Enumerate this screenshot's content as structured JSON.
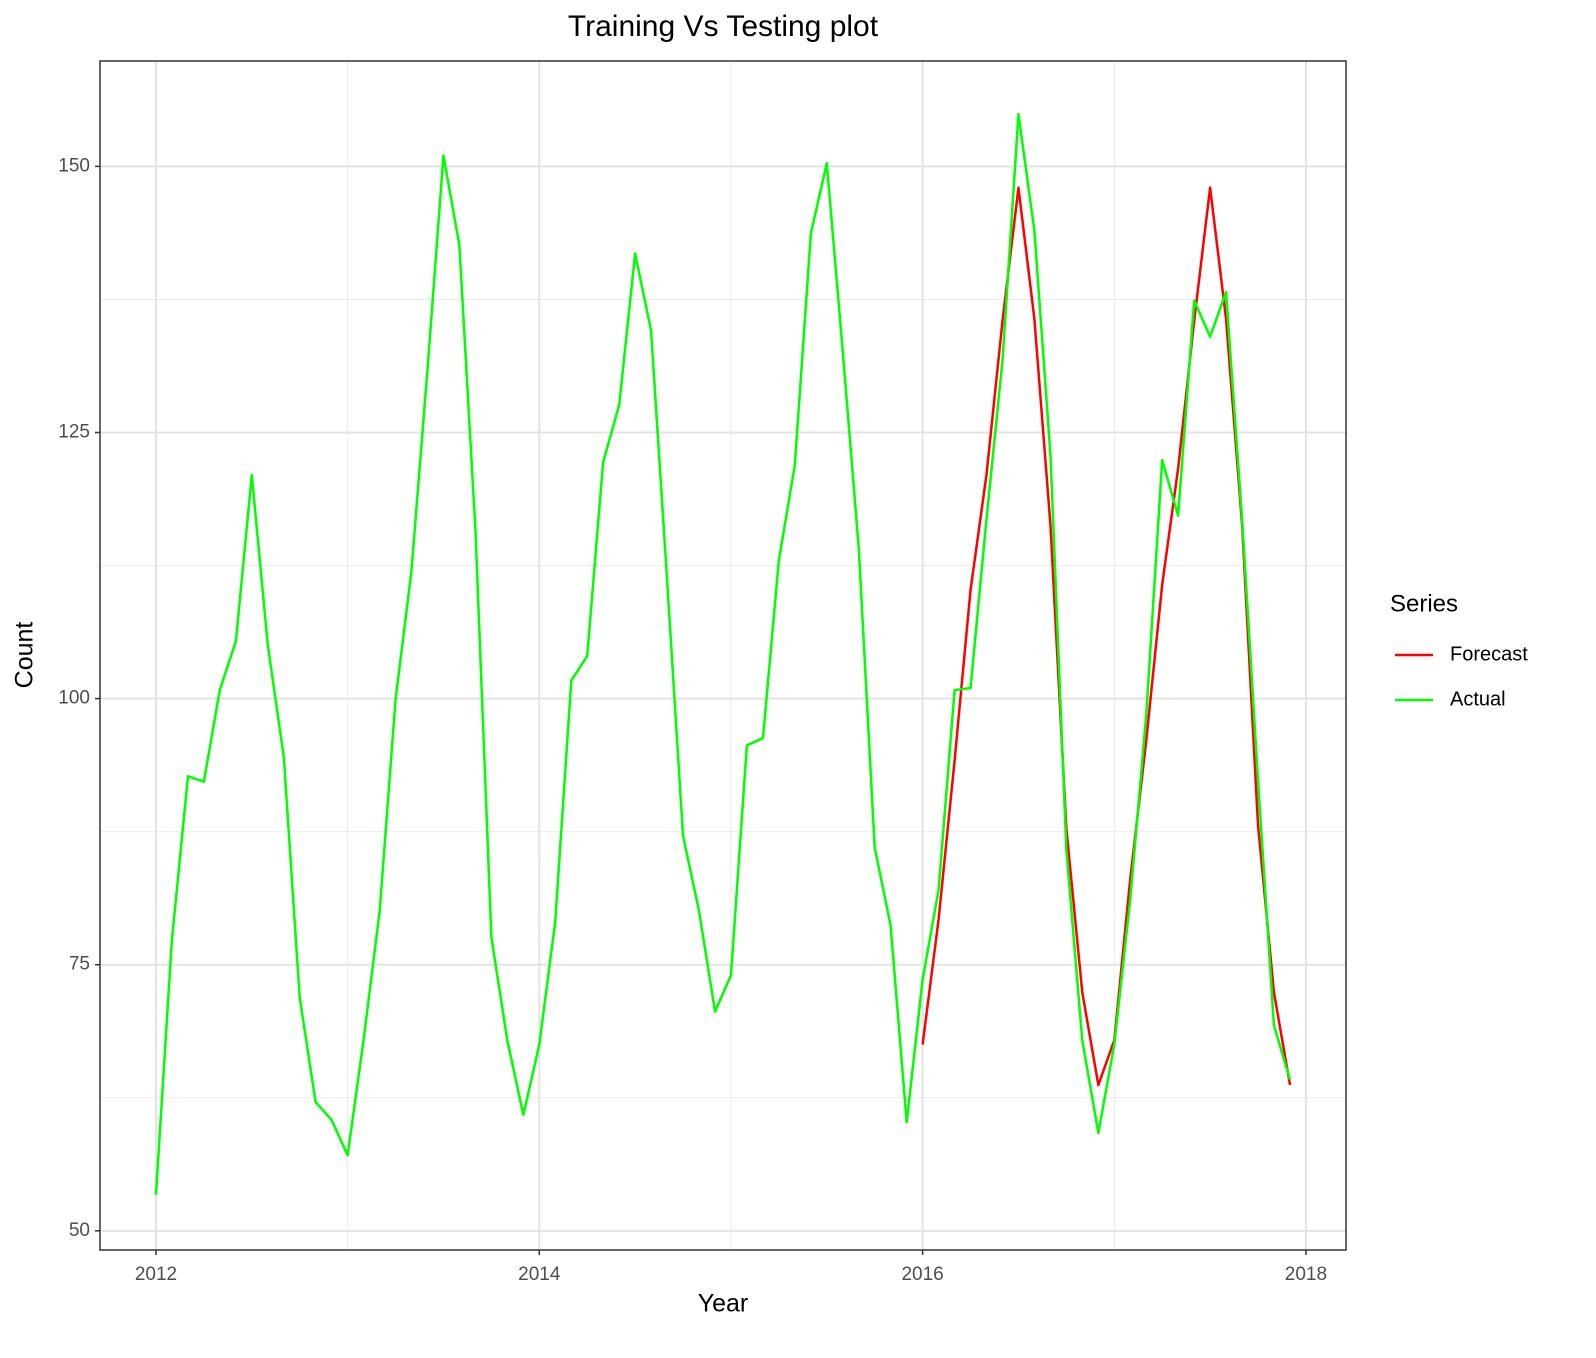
{
  "chart_data": {
    "type": "line",
    "title": "Training Vs Testing plot",
    "x_label": "Year",
    "y_label": "Count",
    "xlim": [
      2011.708,
      2018.209
    ],
    "ylim": [
      48.2,
      159.9
    ],
    "xticks": [
      2012,
      2014,
      2016,
      2018
    ],
    "yticks": [
      50,
      75,
      100,
      125,
      150
    ],
    "grid": true,
    "minor_grid": true,
    "legend_title": "Series",
    "legend_position": "right",
    "series": [
      {
        "name": "Forecast",
        "color": "#ff0000",
        "x": [
          2016,
          2016.083,
          2016.167,
          2016.25,
          2016.333,
          2016.417,
          2016.5,
          2016.583,
          2016.667,
          2016.75,
          2016.833,
          2016.917,
          2017,
          2017.083,
          2017.167,
          2017.25,
          2017.333,
          2017.417,
          2017.5,
          2017.583,
          2017.667,
          2017.75,
          2017.833,
          2017.917
        ],
        "values": [
          67.5,
          79.2,
          94.2,
          110.2,
          121.0,
          135.5,
          148.0,
          135.7,
          116.3,
          87.8,
          72.4,
          63.7,
          67.9,
          83.0,
          96.1,
          110.7,
          121.6,
          135.5,
          148.0,
          135.7,
          116.3,
          88.1,
          72.4,
          63.7
        ]
      },
      {
        "name": "Actual",
        "color": "#00ff00",
        "x": [
          2012,
          2012.083,
          2012.167,
          2012.25,
          2012.333,
          2012.417,
          2012.5,
          2012.583,
          2012.667,
          2012.75,
          2012.833,
          2012.917,
          2013,
          2013.083,
          2013.167,
          2013.25,
          2013.333,
          2013.417,
          2013.5,
          2013.583,
          2013.667,
          2013.75,
          2013.833,
          2013.917,
          2014,
          2014.083,
          2014.167,
          2014.25,
          2014.333,
          2014.417,
          2014.5,
          2014.583,
          2014.667,
          2014.75,
          2014.833,
          2014.917,
          2015,
          2015.083,
          2015.167,
          2015.25,
          2015.333,
          2015.417,
          2015.5,
          2015.583,
          2015.667,
          2015.75,
          2015.833,
          2015.917,
          2016,
          2016.083,
          2016.167,
          2016.25,
          2016.333,
          2016.417,
          2016.5,
          2016.583,
          2016.667,
          2016.75,
          2016.833,
          2016.917,
          2017,
          2017.083,
          2017.167,
          2017.25,
          2017.333,
          2017.417,
          2017.5,
          2017.583,
          2017.667,
          2017.75,
          2017.833,
          2017.917
        ],
        "values": [
          53.4,
          77.3,
          92.7,
          92.2,
          100.8,
          105.4,
          121.0,
          105.1,
          94.5,
          71.9,
          62.1,
          60.4,
          57.1,
          67.9,
          80.0,
          99.9,
          112.0,
          131.0,
          151.0,
          142.6,
          115.8,
          77.6,
          67.9,
          60.9,
          67.5,
          79.0,
          101.7,
          104.0,
          122.2,
          127.6,
          141.8,
          134.6,
          111.1,
          87.1,
          80.1,
          70.6,
          74.0,
          95.6,
          96.3,
          113.0,
          121.9,
          143.7,
          150.3,
          132.7,
          114.1,
          86.0,
          78.7,
          60.2,
          73.6,
          82.0,
          100.8,
          101.0,
          116.8,
          131.8,
          154.9,
          144.0,
          122.9,
          85.8,
          67.9,
          59.2,
          67.5,
          81.1,
          98.5,
          122.4,
          117.2,
          137.4,
          134.0,
          138.2,
          116.8,
          92.3,
          69.3,
          64.2
        ]
      }
    ]
  }
}
